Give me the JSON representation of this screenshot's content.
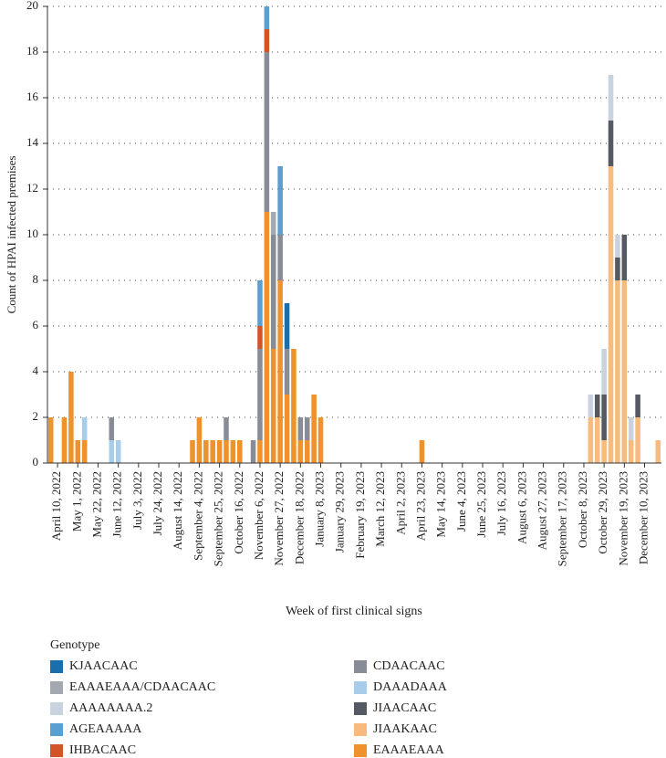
{
  "chart_data": {
    "type": "stacked_bar",
    "ylabel": "Count of HPAI infected premises",
    "xlabel": "Week of first clinical signs",
    "legend_title": "Genotype",
    "ylim": [
      0,
      20
    ],
    "yticks": [
      0,
      2,
      4,
      6,
      8,
      10,
      12,
      14,
      16,
      18,
      20
    ],
    "grid": true,
    "categories": [
      null,
      "April 10, 2022",
      null,
      null,
      "May 1, 2022",
      null,
      null,
      "May 22, 2022",
      null,
      null,
      "June 12, 2022",
      null,
      null,
      "July 3, 2022",
      null,
      null,
      "July 24, 2022",
      null,
      null,
      "August 14, 2022",
      null,
      null,
      "September 4, 2022",
      null,
      null,
      "September 25, 2022",
      null,
      null,
      "October 16, 2022",
      null,
      null,
      "November 6, 2022",
      null,
      null,
      "November 27, 2022",
      null,
      null,
      "December 18, 2022",
      null,
      null,
      "January 8, 2023",
      null,
      null,
      "January 29, 2023",
      null,
      null,
      "February 19, 2023",
      null,
      null,
      "March 12, 2023",
      null,
      null,
      "April 2, 2023",
      null,
      null,
      "April 23, 2023",
      null,
      null,
      "May 14, 2023",
      null,
      null,
      "June 4, 2023",
      null,
      null,
      "June 25, 2023",
      null,
      null,
      "July 16, 2023",
      null,
      null,
      "August 6, 2023",
      null,
      null,
      "August 27, 2023",
      null,
      null,
      "September 17, 2023",
      null,
      null,
      "October 8, 2023",
      null,
      null,
      "October 29, 2023",
      null,
      null,
      "November 19, 2023",
      null,
      null,
      "December 10, 2023",
      null,
      null
    ],
    "series": [
      {
        "name": "KJAACAAC",
        "color": "#1a6eab",
        "values": [
          0,
          0,
          0,
          0,
          0,
          0,
          0,
          0,
          0,
          0,
          0,
          0,
          0,
          0,
          0,
          0,
          0,
          0,
          0,
          0,
          0,
          0,
          0,
          0,
          0,
          0,
          0,
          0,
          0,
          0,
          0,
          0,
          0,
          0,
          0,
          2,
          0,
          0,
          0,
          0,
          0,
          0,
          0,
          0,
          0,
          0,
          0,
          0,
          0,
          0,
          0,
          0,
          0,
          0,
          0,
          0,
          0,
          0,
          0,
          0,
          0,
          0,
          0,
          0,
          0,
          0,
          0,
          0,
          0,
          0,
          0,
          0,
          0,
          0,
          0,
          0,
          0,
          0,
          0,
          0,
          0,
          0,
          0,
          0,
          0,
          0,
          0,
          0,
          0,
          0,
          0
        ]
      },
      {
        "name": "EAAAEAAA/CDAACAAC",
        "color": "#a4a9b1",
        "values": [
          0,
          0,
          0,
          0,
          0,
          0,
          0,
          0,
          0,
          0,
          0,
          0,
          0,
          0,
          0,
          0,
          0,
          0,
          0,
          0,
          0,
          0,
          0,
          0,
          0,
          0,
          0,
          0,
          0,
          0,
          0,
          0,
          0,
          1,
          0,
          0,
          0,
          0,
          0,
          0,
          0,
          0,
          0,
          0,
          0,
          0,
          0,
          0,
          0,
          0,
          0,
          0,
          0,
          0,
          0,
          0,
          0,
          0,
          0,
          0,
          0,
          0,
          0,
          0,
          0,
          0,
          0,
          0,
          0,
          0,
          0,
          0,
          0,
          0,
          0,
          0,
          0,
          0,
          0,
          0,
          0,
          0,
          0,
          0,
          0,
          0,
          0,
          0,
          0,
          0,
          0
        ]
      },
      {
        "name": "AAAAAAAA.2",
        "color": "#c9d3df",
        "values": [
          0,
          0,
          0,
          0,
          0,
          0,
          0,
          0,
          0,
          0,
          0,
          0,
          0,
          0,
          0,
          0,
          0,
          0,
          0,
          0,
          0,
          0,
          0,
          0,
          0,
          0,
          0,
          0,
          0,
          0,
          0,
          0,
          0,
          0,
          0,
          0,
          0,
          0,
          0,
          0,
          0,
          0,
          0,
          0,
          0,
          0,
          0,
          0,
          0,
          0,
          0,
          0,
          0,
          0,
          0,
          0,
          0,
          0,
          0,
          0,
          0,
          0,
          0,
          0,
          0,
          0,
          0,
          0,
          0,
          0,
          0,
          0,
          0,
          0,
          0,
          0,
          0,
          0,
          0,
          0,
          1,
          0,
          2,
          2,
          1,
          0,
          1,
          0,
          0,
          0,
          0
        ]
      },
      {
        "name": "AGEAAAAA",
        "color": "#5a9fd2",
        "values": [
          0,
          0,
          0,
          0,
          0,
          0,
          0,
          0,
          0,
          0,
          0,
          0,
          0,
          0,
          0,
          0,
          0,
          0,
          0,
          0,
          0,
          0,
          0,
          0,
          0,
          0,
          0,
          0,
          0,
          0,
          0,
          2,
          1,
          0,
          3,
          0,
          0,
          0,
          0,
          0,
          0,
          0,
          0,
          0,
          0,
          0,
          0,
          0,
          0,
          0,
          0,
          0,
          0,
          0,
          0,
          0,
          0,
          0,
          0,
          0,
          0,
          0,
          0,
          0,
          0,
          0,
          0,
          0,
          0,
          0,
          0,
          0,
          0,
          0,
          0,
          0,
          0,
          0,
          0,
          0,
          0,
          0,
          0,
          0,
          0,
          0,
          0,
          0,
          0,
          0,
          0
        ]
      },
      {
        "name": "IHBACAAC",
        "color": "#d2552a",
        "values": [
          0,
          0,
          0,
          0,
          0,
          0,
          0,
          0,
          0,
          0,
          0,
          0,
          0,
          0,
          0,
          0,
          0,
          0,
          0,
          0,
          0,
          0,
          0,
          0,
          0,
          0,
          0,
          0,
          0,
          0,
          0,
          1,
          1,
          0,
          0,
          0,
          0,
          0,
          0,
          0,
          0,
          0,
          0,
          0,
          0,
          0,
          0,
          0,
          0,
          0,
          0,
          0,
          0,
          0,
          0,
          0,
          0,
          0,
          0,
          0,
          0,
          0,
          0,
          0,
          0,
          0,
          0,
          0,
          0,
          0,
          0,
          0,
          0,
          0,
          0,
          0,
          0,
          0,
          0,
          0,
          0,
          0,
          0,
          0,
          0,
          0,
          0,
          0,
          0,
          0,
          0
        ]
      },
      {
        "name": "CDAACAAC",
        "color": "#878c96",
        "values": [
          0,
          0,
          0,
          0,
          0,
          0,
          0,
          0,
          0,
          1,
          0,
          0,
          0,
          0,
          0,
          0,
          0,
          0,
          0,
          0,
          0,
          0,
          0,
          0,
          0,
          0,
          1,
          0,
          0,
          0,
          1,
          4,
          7,
          5,
          2,
          2,
          0,
          1,
          1,
          0,
          0,
          0,
          0,
          0,
          0,
          0,
          0,
          0,
          0,
          0,
          0,
          0,
          0,
          0,
          0,
          0,
          0,
          0,
          0,
          0,
          0,
          0,
          0,
          0,
          0,
          0,
          0,
          0,
          0,
          0,
          0,
          0,
          0,
          0,
          0,
          0,
          0,
          0,
          0,
          0,
          0,
          0,
          0,
          0,
          0,
          0,
          0,
          0,
          0,
          0,
          0
        ]
      },
      {
        "name": "DAAADAAA",
        "color": "#a7cdea",
        "values": [
          0,
          0,
          0,
          0,
          0,
          1,
          0,
          0,
          0,
          1,
          1,
          0,
          0,
          0,
          0,
          0,
          0,
          0,
          0,
          0,
          0,
          0,
          0,
          0,
          0,
          0,
          0,
          0,
          0,
          0,
          0,
          0,
          0,
          0,
          0,
          0,
          0,
          0,
          0,
          0,
          0,
          0,
          0,
          0,
          0,
          0,
          0,
          0,
          0,
          0,
          0,
          0,
          0,
          0,
          0,
          0,
          0,
          0,
          0,
          0,
          0,
          0,
          0,
          0,
          0,
          0,
          0,
          0,
          0,
          0,
          0,
          0,
          0,
          0,
          0,
          0,
          0,
          0,
          0,
          0,
          0,
          0,
          0,
          0,
          0,
          0,
          0,
          0,
          0,
          0,
          0
        ]
      },
      {
        "name": "JIAACAAC",
        "color": "#545962",
        "values": [
          0,
          0,
          0,
          0,
          0,
          0,
          0,
          0,
          0,
          0,
          0,
          0,
          0,
          0,
          0,
          0,
          0,
          0,
          0,
          0,
          0,
          0,
          0,
          0,
          0,
          0,
          0,
          0,
          0,
          0,
          0,
          0,
          0,
          0,
          0,
          0,
          0,
          0,
          0,
          0,
          0,
          0,
          0,
          0,
          0,
          0,
          0,
          0,
          0,
          0,
          0,
          0,
          0,
          0,
          0,
          0,
          0,
          0,
          0,
          0,
          0,
          0,
          0,
          0,
          0,
          0,
          0,
          0,
          0,
          0,
          0,
          0,
          0,
          0,
          0,
          0,
          0,
          0,
          0,
          0,
          0,
          1,
          2,
          2,
          1,
          2,
          0,
          1,
          0,
          0,
          0
        ]
      },
      {
        "name": "JIAAKAAC",
        "color": "#f7bb7d",
        "values": [
          0,
          0,
          0,
          0,
          0,
          0,
          0,
          0,
          0,
          0,
          0,
          0,
          0,
          0,
          0,
          0,
          0,
          0,
          0,
          0,
          0,
          0,
          0,
          0,
          0,
          0,
          0,
          0,
          0,
          0,
          0,
          0,
          0,
          0,
          0,
          0,
          0,
          0,
          0,
          0,
          0,
          0,
          0,
          0,
          0,
          0,
          0,
          0,
          0,
          0,
          0,
          0,
          0,
          0,
          0,
          0,
          0,
          0,
          0,
          0,
          0,
          0,
          0,
          0,
          0,
          0,
          0,
          0,
          0,
          0,
          0,
          0,
          0,
          0,
          0,
          0,
          0,
          0,
          0,
          0,
          2,
          2,
          1,
          13,
          8,
          8,
          1,
          2,
          0,
          0,
          1
        ]
      },
      {
        "name": "EAAAEAAA",
        "color": "#f0922c",
        "values": [
          2,
          0,
          2,
          4,
          1,
          1,
          0,
          0,
          0,
          0,
          0,
          0,
          0,
          0,
          0,
          0,
          0,
          0,
          0,
          0,
          0,
          1,
          2,
          1,
          1,
          1,
          1,
          1,
          1,
          0,
          0,
          1,
          11,
          5,
          8,
          3,
          5,
          1,
          1,
          3,
          2,
          0,
          0,
          0,
          0,
          0,
          0,
          0,
          0,
          0,
          0,
          0,
          0,
          0,
          0,
          1,
          0,
          0,
          0,
          0,
          0,
          0,
          0,
          0,
          0,
          0,
          0,
          0,
          0,
          0,
          0,
          0,
          0,
          0,
          0,
          0,
          0,
          0,
          0,
          0,
          0,
          0,
          0,
          0,
          0,
          0,
          0,
          0,
          0,
          0,
          0
        ]
      }
    ]
  }
}
